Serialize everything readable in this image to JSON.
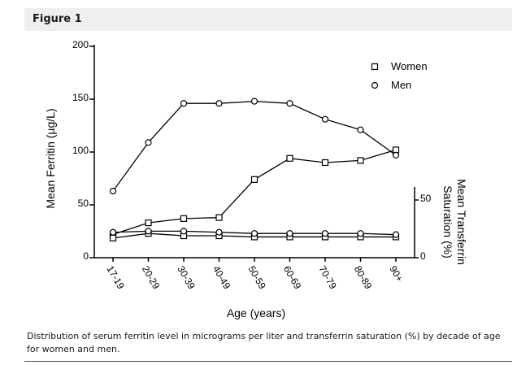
{
  "figure": {
    "title": "Figure 1",
    "caption": "Distribution of serum ferritin level in micrograms per liter and transferrin saturation (%) by decade of age for women and men."
  },
  "chart_data": {
    "type": "line",
    "xlabel": "Age (years)",
    "ylabel": "Mean Ferritin (µg/L)",
    "y2label_line1": "Mean Transferrin",
    "y2label_line2": "Saturation (%)",
    "categories": [
      "17-19",
      "20-29",
      "30-39",
      "40-49",
      "50-59",
      "60-69",
      "70-79",
      "80-89",
      "90+"
    ],
    "ylim": [
      0,
      200
    ],
    "yticks": [
      0,
      50,
      100,
      150,
      200
    ],
    "y2lim": [
      0,
      75
    ],
    "y2ticks": [
      0,
      50
    ],
    "legend_position": "top-right",
    "grid": false,
    "series": [
      {
        "name": "Women",
        "axis": "left",
        "marker": "square",
        "values": [
          22,
          33,
          37,
          38,
          74,
          94,
          90,
          92,
          102
        ]
      },
      {
        "name": "Men",
        "axis": "left",
        "marker": "circle",
        "values": [
          63,
          109,
          146,
          146,
          148,
          146,
          131,
          121,
          97
        ]
      },
      {
        "name": "Women",
        "axis": "right",
        "marker": "square",
        "values": [
          17,
          21,
          19,
          19,
          18,
          18,
          18,
          18,
          18
        ]
      },
      {
        "name": "Men",
        "axis": "right",
        "marker": "circle",
        "values": [
          22,
          23,
          23,
          22,
          21,
          21,
          21,
          21,
          20
        ]
      }
    ]
  }
}
